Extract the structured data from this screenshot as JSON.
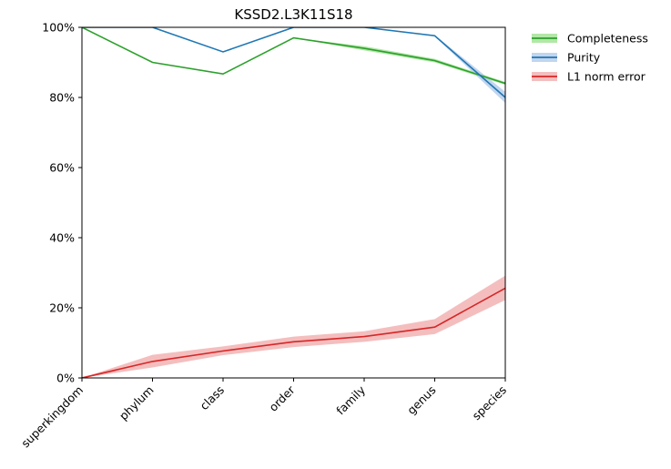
{
  "chart_data": {
    "type": "line",
    "title": "KSSD2.L3K11S18",
    "xlabel": "",
    "ylabel": "",
    "categories": [
      "superkingdom",
      "phylum",
      "class",
      "order",
      "family",
      "genus",
      "species"
    ],
    "ylim": [
      0,
      100
    ],
    "yticks": [
      "0%",
      "20%",
      "40%",
      "60%",
      "80%",
      "100%"
    ],
    "ytick_values": [
      0,
      20,
      40,
      60,
      80,
      100
    ],
    "grid": false,
    "legend_position": "outside-top-right",
    "series": [
      {
        "name": "Completeness",
        "color": "#2ca02c",
        "band_color": "#98df8a",
        "values": [
          100,
          90,
          86.7,
          97,
          94,
          90.5,
          84
        ],
        "lower": [
          100,
          90,
          86.7,
          97,
          93.4,
          90,
          83.6
        ],
        "upper": [
          100,
          90,
          86.7,
          97,
          94.6,
          91,
          84.4
        ]
      },
      {
        "name": "Purity",
        "color": "#1f77b4",
        "band_color": "#aec7e8",
        "values": [
          100,
          100,
          93,
          100,
          100,
          97.6,
          80
        ],
        "lower": [
          100,
          100,
          93,
          100,
          100,
          97.4,
          78.4
        ],
        "upper": [
          100,
          100,
          93,
          100,
          100,
          97.8,
          81.6
        ]
      },
      {
        "name": "L1 norm error",
        "color": "#d62728",
        "band_color": "#f0a8a8",
        "values": [
          0,
          4.7,
          7.7,
          10.3,
          11.8,
          14.5,
          25.6
        ],
        "lower": [
          0,
          3.0,
          6.5,
          8.8,
          10.3,
          12.5,
          22.2
        ],
        "upper": [
          0,
          6.6,
          9.0,
          11.8,
          13.3,
          16.8,
          29.2
        ]
      }
    ]
  }
}
